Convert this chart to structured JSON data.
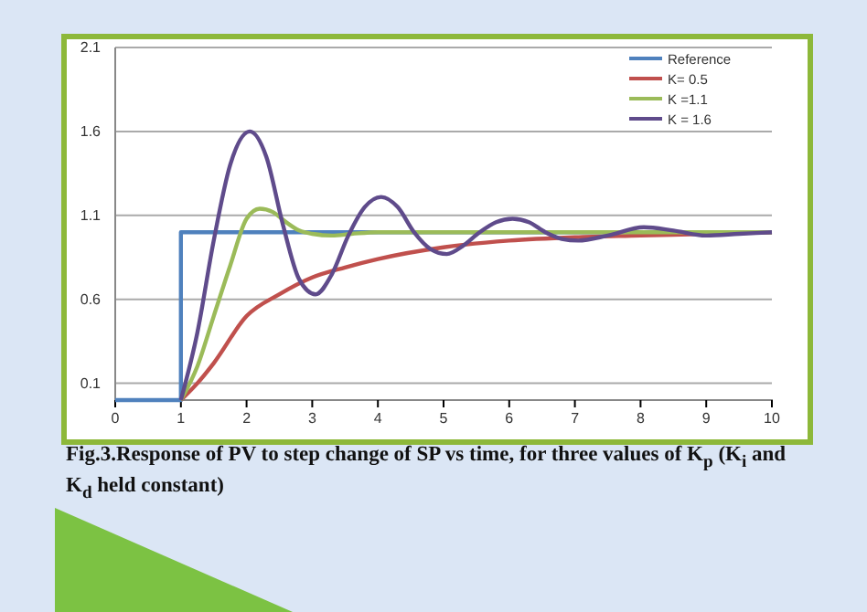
{
  "chart_data": {
    "type": "line",
    "xlim": [
      0,
      10
    ],
    "xticks": [
      0,
      1,
      2,
      3,
      4,
      5,
      6,
      7,
      8,
      9,
      10
    ],
    "ylim": [
      0,
      2.1
    ],
    "yticks": [
      0.1,
      0.6,
      1.1,
      1.6,
      2.1
    ],
    "grid": "y",
    "legend": "top right",
    "marker": "none",
    "line_style": "solid",
    "annotations": [
      "Fig.3.Response of PV to step change of SP vs time, for three values of K$_{p}$ (K$_{i}$ and K$_{d}$ held constant)"
    ],
    "series": [
      {
        "name": "Reference",
        "color": "#4f81bd",
        "x": [
          0,
          1,
          1,
          10
        ],
        "values": [
          0,
          0,
          1,
          1
        ]
      },
      {
        "name": "K= 0.5",
        "color": "#c0504d",
        "x": [
          1,
          1.25,
          1.5,
          2,
          2.5,
          3,
          3.5,
          4,
          5,
          6,
          7,
          8,
          9,
          10
        ],
        "values": [
          0,
          0.1,
          0.22,
          0.5,
          0.63,
          0.73,
          0.79,
          0.84,
          0.91,
          0.95,
          0.97,
          0.98,
          0.99,
          1.0
        ]
      },
      {
        "name": "K =1.1",
        "color": "#9bbb59",
        "x": [
          1,
          1.25,
          1.5,
          1.75,
          2,
          2.2,
          2.4,
          2.6,
          2.8,
          3,
          3.3,
          3.6,
          4,
          10
        ],
        "values": [
          0,
          0.2,
          0.5,
          0.8,
          1.08,
          1.14,
          1.12,
          1.06,
          1.01,
          0.99,
          0.98,
          0.99,
          1,
          1
        ]
      },
      {
        "name": "K = 1.6",
        "color": "#5f4b8b",
        "x": [
          1,
          1.25,
          1.5,
          1.75,
          2.05,
          2.3,
          2.55,
          2.8,
          3.05,
          3.3,
          3.55,
          3.8,
          4.05,
          4.3,
          4.55,
          4.8,
          5.05,
          5.3,
          5.55,
          5.8,
          6.05,
          6.3,
          6.55,
          6.8,
          7.05,
          7.5,
          8.05,
          8.5,
          9,
          9.5,
          10
        ],
        "values": [
          0,
          0.4,
          0.95,
          1.4,
          1.6,
          1.45,
          1.05,
          0.72,
          0.63,
          0.75,
          0.98,
          1.15,
          1.21,
          1.15,
          1.0,
          0.9,
          0.87,
          0.92,
          1.0,
          1.06,
          1.08,
          1.06,
          1.0,
          0.96,
          0.95,
          0.98,
          1.03,
          1.01,
          0.98,
          0.99,
          1.0
        ]
      }
    ]
  }
}
